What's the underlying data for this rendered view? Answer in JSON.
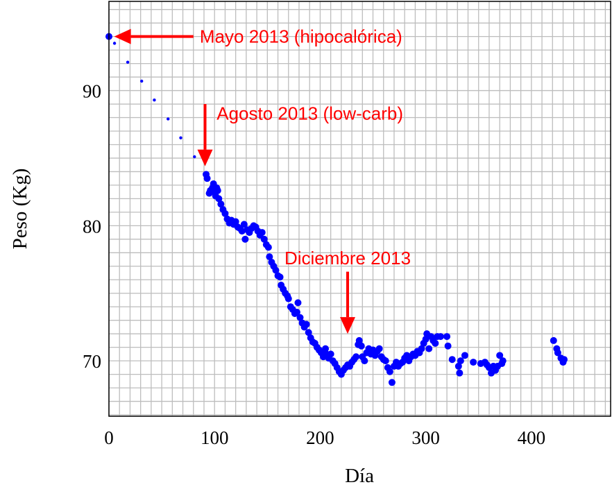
{
  "chart_data": {
    "type": "scatter",
    "title": "",
    "xlabel": "Día",
    "ylabel": "Peso (Kg)",
    "xlim": [
      0,
      475
    ],
    "ylim": [
      65.9,
      96.6
    ],
    "xticks": [
      0,
      100,
      200,
      300,
      400
    ],
    "yticks": [
      70,
      80,
      90
    ],
    "xtick_labels": [
      "0",
      "100",
      "200",
      "300",
      "400"
    ],
    "ytick_labels": [
      "70",
      "80",
      "90"
    ],
    "grid": {
      "on": true,
      "x_step": 10,
      "y_step": 1
    },
    "marker_color": "#0000ff",
    "annotation_color": "#ff0000",
    "series": [
      {
        "marker": "large",
        "points": [
          [
            0,
            94.0
          ]
        ]
      },
      {
        "marker": "small",
        "points": [
          [
            5.3,
            93.5
          ],
          [
            17.8,
            92.1
          ],
          [
            31,
            90.7
          ],
          [
            43,
            89.3
          ],
          [
            56,
            87.9
          ],
          [
            68,
            86.5
          ],
          [
            81,
            85.1
          ]
        ]
      },
      {
        "marker": "large",
        "points": [
          [
            92,
            83.8
          ],
          [
            93,
            83.5
          ],
          [
            95,
            82.4
          ],
          [
            96,
            82.6
          ],
          [
            98,
            82.8
          ],
          [
            99,
            83.1
          ],
          [
            100,
            82.5
          ],
          [
            101,
            82.2
          ],
          [
            102,
            82.8
          ],
          [
            103,
            82.6
          ],
          [
            104,
            82.0
          ],
          [
            106,
            81.6
          ],
          [
            108,
            81.2
          ],
          [
            110,
            80.9
          ],
          [
            112,
            80.5
          ],
          [
            114,
            80.2
          ],
          [
            116,
            80.4
          ],
          [
            118,
            80.1
          ],
          [
            120,
            80.3
          ],
          [
            122,
            79.9
          ],
          [
            124,
            79.8
          ],
          [
            126,
            79.6
          ],
          [
            128,
            80.1
          ],
          [
            129,
            79.0
          ],
          [
            131,
            79.7
          ],
          [
            133,
            79.5
          ],
          [
            135,
            79.8
          ],
          [
            137,
            80.0
          ],
          [
            139,
            79.9
          ],
          [
            141,
            79.6
          ],
          [
            143,
            79.3
          ],
          [
            145,
            79.5
          ],
          [
            147,
            79.0
          ],
          [
            149,
            78.6
          ],
          [
            151,
            78.4
          ],
          [
            152,
            77.7
          ],
          [
            154,
            77.3
          ],
          [
            156,
            77.0
          ],
          [
            158,
            76.7
          ],
          [
            160,
            76.3
          ],
          [
            162,
            76.2
          ],
          [
            163,
            75.6
          ],
          [
            165,
            75.3
          ],
          [
            167,
            75.0
          ],
          [
            169,
            74.8
          ],
          [
            170,
            74.6
          ],
          [
            172,
            74.0
          ],
          [
            174,
            73.8
          ],
          [
            176,
            73.5
          ],
          [
            178,
            73.6
          ],
          [
            179,
            74.3
          ],
          [
            181,
            73.2
          ],
          [
            183,
            72.8
          ],
          [
            185,
            72.5
          ],
          [
            187,
            72.7
          ],
          [
            189,
            72.1
          ],
          [
            191,
            71.7
          ],
          [
            193,
            71.4
          ],
          [
            195,
            71.3
          ],
          [
            197,
            71.0
          ],
          [
            199,
            70.8
          ],
          [
            201,
            70.6
          ],
          [
            203,
            70.3
          ],
          [
            205,
            70.9
          ],
          [
            206,
            70.5
          ],
          [
            208,
            70.2
          ],
          [
            210,
            70.5
          ],
          [
            212,
            70.0
          ],
          [
            214,
            69.8
          ],
          [
            216,
            69.5
          ],
          [
            218,
            69.2
          ],
          [
            220,
            69.0
          ],
          [
            222,
            69.3
          ],
          [
            224,
            69.5
          ],
          [
            226,
            69.7
          ],
          [
            228,
            69.6
          ],
          [
            230,
            69.9
          ],
          [
            232,
            70.1
          ],
          [
            234,
            70.3
          ],
          [
            236,
            71.2
          ],
          [
            237,
            71.5
          ],
          [
            239,
            71.1
          ],
          [
            240,
            70.3
          ],
          [
            242,
            70.0
          ],
          [
            244,
            70.6
          ],
          [
            246,
            70.9
          ],
          [
            248,
            70.5
          ],
          [
            250,
            70.8
          ],
          [
            252,
            70.4
          ],
          [
            254,
            70.7
          ],
          [
            256,
            70.9
          ],
          [
            258,
            70.3
          ],
          [
            260,
            70.1
          ],
          [
            262,
            70.0
          ],
          [
            264,
            69.5
          ],
          [
            266,
            69.2
          ],
          [
            268,
            68.4
          ],
          [
            270,
            69.6
          ],
          [
            272,
            69.9
          ],
          [
            274,
            69.6
          ],
          [
            276,
            69.8
          ],
          [
            278,
            69.9
          ],
          [
            280,
            70.2
          ],
          [
            282,
            70.4
          ],
          [
            284,
            70.0
          ],
          [
            286,
            70.3
          ],
          [
            288,
            70.5
          ],
          [
            290,
            70.4
          ],
          [
            292,
            70.7
          ],
          [
            294,
            70.6
          ],
          [
            296,
            70.9
          ],
          [
            298,
            71.3
          ],
          [
            300,
            71.6
          ],
          [
            301,
            72.0
          ],
          [
            303,
            70.9
          ],
          [
            305,
            71.8
          ],
          [
            307,
            71.5
          ],
          [
            309,
            71.3
          ],
          [
            311,
            71.8
          ],
          [
            314,
            71.8
          ],
          [
            320,
            71.8
          ],
          [
            321,
            71.1
          ],
          [
            325,
            70.1
          ],
          [
            331,
            69.6
          ],
          [
            332,
            69.1
          ],
          [
            333,
            70.0
          ],
          [
            337,
            70.4
          ],
          [
            345,
            69.9
          ],
          [
            352,
            69.8
          ],
          [
            356,
            69.9
          ],
          [
            358,
            69.7
          ],
          [
            360,
            69.5
          ],
          [
            362,
            69.1
          ],
          [
            364,
            69.6
          ],
          [
            366,
            69.3
          ],
          [
            368,
            69.6
          ],
          [
            370,
            70.4
          ],
          [
            372,
            69.8
          ],
          [
            373,
            70.0
          ],
          [
            421,
            71.5
          ],
          [
            424,
            70.9
          ],
          [
            425,
            70.6
          ],
          [
            428,
            70.2
          ],
          [
            430,
            69.9
          ],
          [
            431,
            70.1
          ]
        ]
      }
    ],
    "annotations": [
      {
        "text": "Mayo 2013 (hipocalórica)",
        "arrow_from": [
          80,
          94.0
        ],
        "arrow_to": [
          5,
          94.0
        ],
        "text_at": [
          86,
          94.0
        ],
        "anchor": "start"
      },
      {
        "text": "Agosto 2013 (low-carb)",
        "arrow_from": [
          91,
          89.0
        ],
        "arrow_to": [
          91,
          84.4
        ],
        "text_at": [
          102,
          88.3
        ],
        "anchor": "start"
      },
      {
        "text": "Diciembre 2013",
        "arrow_from": [
          226,
          76.6
        ],
        "arrow_to": [
          226,
          72.0
        ],
        "text_at": [
          226,
          77.6
        ],
        "anchor": "middle"
      }
    ]
  }
}
